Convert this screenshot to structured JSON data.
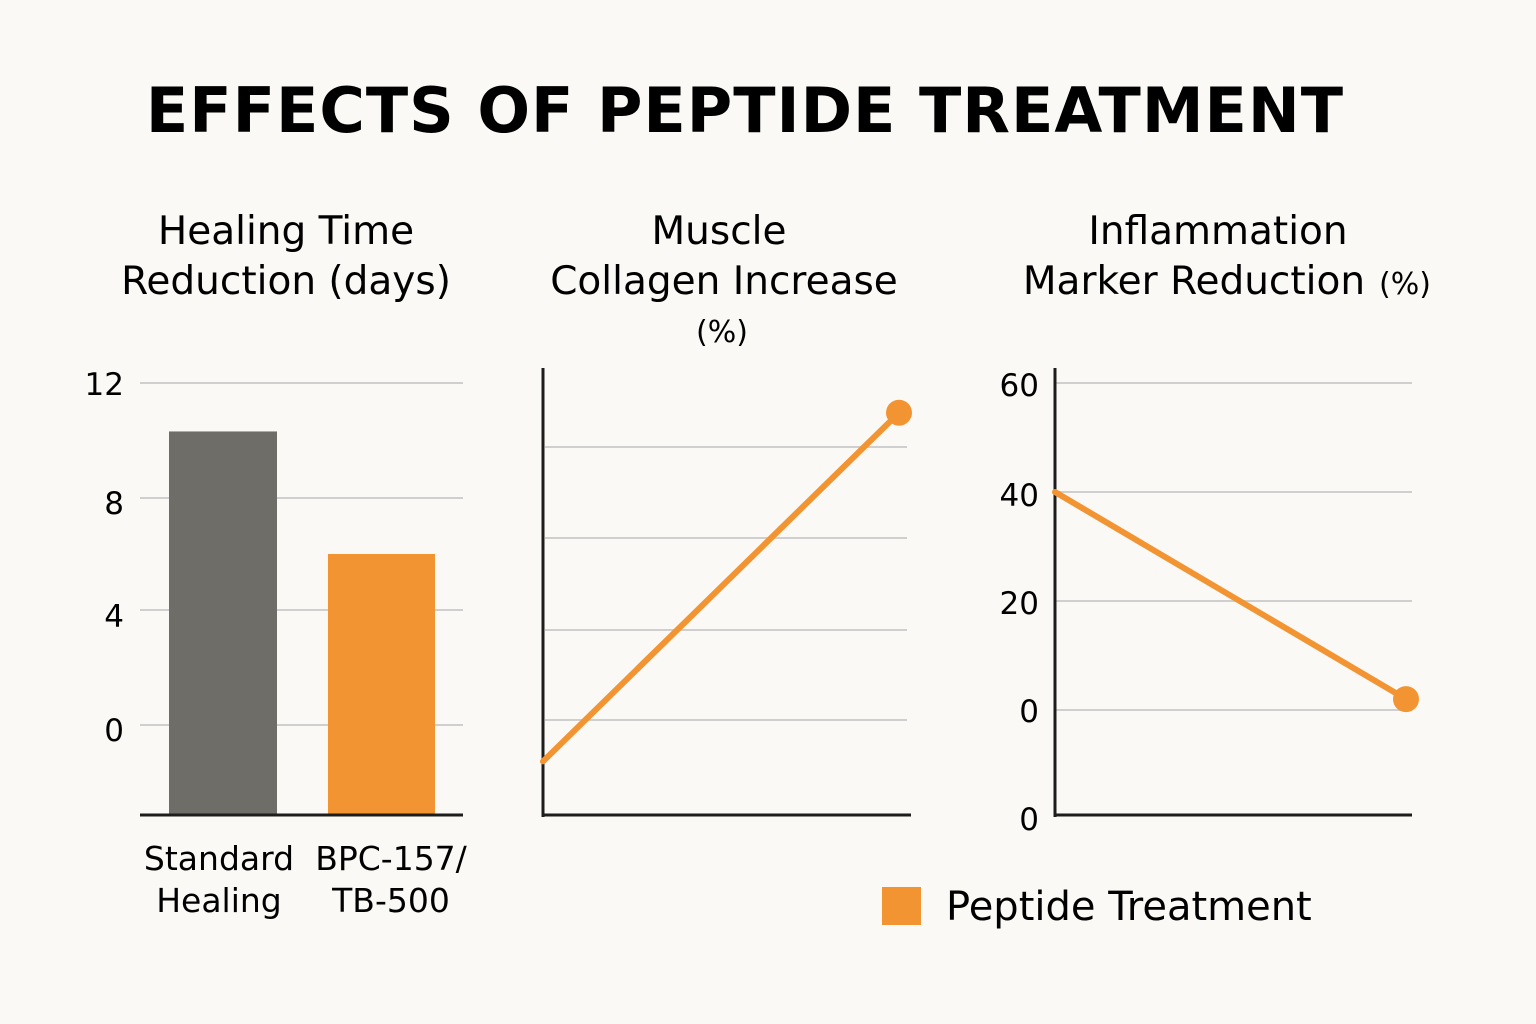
{
  "title": "EFFECTS OF PEPTIDE TREATMENT",
  "colors": {
    "background": "#fbf9f5",
    "text": "#1d1d1d",
    "standard": "#6f6d68",
    "peptide": "#f39433",
    "grid": "#cfcfcf",
    "axis": "#1d1d1d"
  },
  "legend": {
    "label": "Peptide Treatment"
  },
  "chart_data": [
    {
      "type": "bar",
      "title_lines": [
        "Healing Time",
        "Reduction (days)"
      ],
      "categories": [
        [
          "Standard",
          "Healing"
        ],
        [
          "BPC-157/",
          "TB-500"
        ]
      ],
      "values": [
        10.3,
        6.0
      ],
      "yticks": [
        "12",
        "8",
        "4",
        "0"
      ],
      "grid": true
    },
    {
      "type": "line",
      "title_lines": [
        "Muscle",
        "Collagen Increase"
      ],
      "title_suffix": "(%)",
      "series": [
        {
          "name": "Peptide Treatment",
          "x": [
            0,
            1
          ],
          "y": [
            0.12,
            0.9
          ],
          "marker_last": true
        }
      ],
      "ylim": [
        0,
        1
      ],
      "yticks": [],
      "grid": true
    },
    {
      "type": "line",
      "title_lines": [
        "Inflammation",
        "Marker Reduction"
      ],
      "title_suffix": "(%)",
      "series": [
        {
          "name": "Peptide Treatment",
          "x": [
            0,
            1
          ],
          "y": [
            40,
            2
          ],
          "marker_last": true
        }
      ],
      "yticks": [
        "60",
        "40",
        "20",
        "0",
        "0"
      ],
      "grid": true
    }
  ]
}
